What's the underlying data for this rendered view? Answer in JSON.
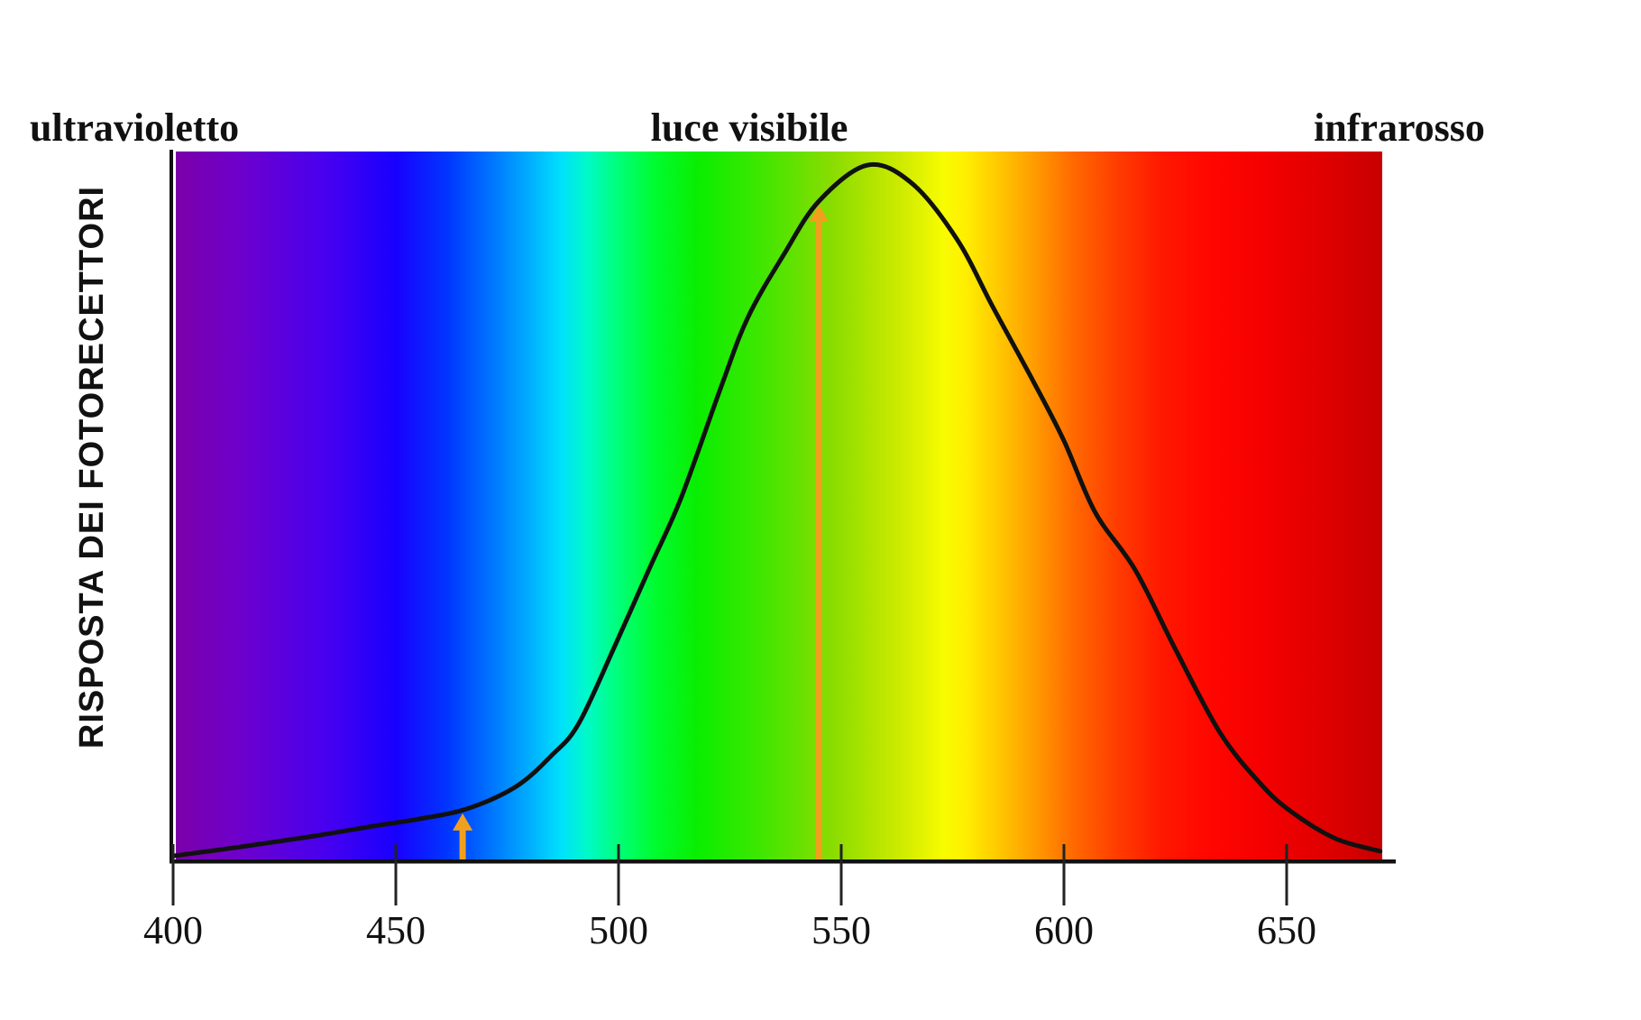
{
  "figure": {
    "background": "#FFFFFF"
  },
  "chart_data": {
    "type": "line",
    "title": "",
    "xlabel": "",
    "ylabel": "RISPOSTA DEI FOTORECETTORI",
    "region_labels": {
      "left": "ultravioletto",
      "center": "luce visibile",
      "right": "infrarosso"
    },
    "x_ticks": [
      400,
      450,
      500,
      550,
      600,
      650
    ],
    "x_tick_labels": [
      "400",
      "450",
      "500",
      "550",
      "600",
      "650"
    ],
    "x_range_nm": [
      400,
      672
    ],
    "y_range": [
      0,
      1
    ],
    "grid": false,
    "legend": false,
    "curve_color": "#111111",
    "peak_nm": 556,
    "series": [
      {
        "name": "risposta dei fotorecettori",
        "points": [
          [
            400,
            0.005
          ],
          [
            415,
            0.018
          ],
          [
            430,
            0.032
          ],
          [
            445,
            0.048
          ],
          [
            455,
            0.058
          ],
          [
            466,
            0.073
          ],
          [
            477,
            0.105
          ],
          [
            485,
            0.15
          ],
          [
            491,
            0.195
          ],
          [
            499,
            0.305
          ],
          [
            507,
            0.42
          ],
          [
            514,
            0.52
          ],
          [
            523,
            0.68
          ],
          [
            529,
            0.78
          ],
          [
            537,
            0.87
          ],
          [
            545,
            0.948
          ],
          [
            556,
            1.0
          ],
          [
            566,
            0.973
          ],
          [
            576,
            0.893
          ],
          [
            584,
            0.796
          ],
          [
            593,
            0.69
          ],
          [
            600,
            0.603
          ],
          [
            607,
            0.5
          ],
          [
            616,
            0.417
          ],
          [
            625,
            0.303
          ],
          [
            635,
            0.183
          ],
          [
            644,
            0.11
          ],
          [
            651,
            0.069
          ],
          [
            661,
            0.03
          ],
          [
            671,
            0.012
          ]
        ]
      }
    ],
    "arrows": [
      {
        "at_nm": 465,
        "from": "x-axis",
        "to": "curve",
        "color": "#F1A01E"
      },
      {
        "at_nm": 545,
        "from": "x-axis",
        "to": "curve",
        "color": "#F1A01E"
      }
    ],
    "spectrum_stops": [
      {
        "nm": 400,
        "color": "#7C00A8"
      },
      {
        "nm": 415,
        "color": "#6E00CC"
      },
      {
        "nm": 435,
        "color": "#4600F0"
      },
      {
        "nm": 450,
        "color": "#1800FF"
      },
      {
        "nm": 462,
        "color": "#0038FF"
      },
      {
        "nm": 472,
        "color": "#0078FF"
      },
      {
        "nm": 480,
        "color": "#00AEFF"
      },
      {
        "nm": 487,
        "color": "#00E0FC"
      },
      {
        "nm": 493,
        "color": "#00FAC8"
      },
      {
        "nm": 500,
        "color": "#00FF78"
      },
      {
        "nm": 508,
        "color": "#00FC30"
      },
      {
        "nm": 518,
        "color": "#0AEE00"
      },
      {
        "nm": 533,
        "color": "#44E600"
      },
      {
        "nm": 548,
        "color": "#8ADC00"
      },
      {
        "nm": 563,
        "color": "#CCEA00"
      },
      {
        "nm": 573,
        "color": "#F8FC00"
      },
      {
        "nm": 578,
        "color": "#FFEE00"
      },
      {
        "nm": 586,
        "color": "#FFC400"
      },
      {
        "nm": 594,
        "color": "#FF9800"
      },
      {
        "nm": 602,
        "color": "#FF6A00"
      },
      {
        "nm": 612,
        "color": "#FF3C00"
      },
      {
        "nm": 622,
        "color": "#FF1800"
      },
      {
        "nm": 633,
        "color": "#FF0600"
      },
      {
        "nm": 645,
        "color": "#F40000"
      },
      {
        "nm": 658,
        "color": "#E00000"
      },
      {
        "nm": 672,
        "color": "#C60000"
      }
    ]
  }
}
